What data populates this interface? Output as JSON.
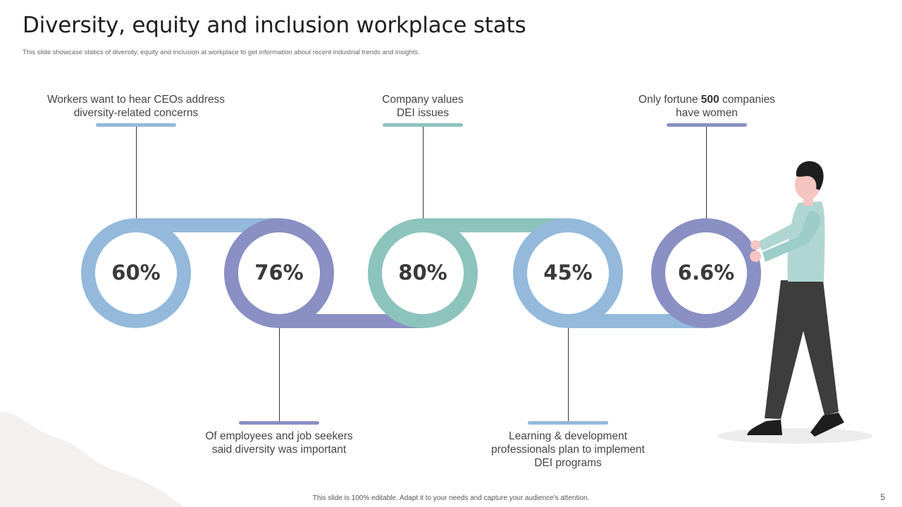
{
  "header": {
    "title": "Diversity, equity and inclusion workplace stats",
    "subtitle": "This slide showcase statics of diversity, equity and inclusion at workplace to get information about recent industrial trends and insights."
  },
  "stats": [
    {
      "value": "60%",
      "label_lines": [
        "Workers want to hear CEOs address",
        "diversity-related concerns"
      ],
      "position": "top",
      "color": "#94b9db"
    },
    {
      "value": "76%",
      "label_lines": [
        "Of employees and job seekers",
        "said diversity was important"
      ],
      "position": "bottom",
      "color": "#8a8fc4"
    },
    {
      "value": "80%",
      "label_lines": [
        "Company values",
        "DEI issues"
      ],
      "position": "top",
      "color": "#8cc4bd"
    },
    {
      "value": "45%",
      "label_lines": [
        "Learning & development",
        "professionals plan to implement",
        "DEI programs"
      ],
      "position": "bottom",
      "color": "#94b9db"
    },
    {
      "value": "6.6%",
      "label_pre": "Only fortune ",
      "label_bold": "500",
      "label_post": " companies",
      "label_line2": "have women",
      "position": "top",
      "color": "#8a8fc4"
    }
  ],
  "footer": {
    "note": "This slide is 100% editable. Adapt it to your needs and capture your audience's attention.",
    "page_number": "5"
  },
  "colors": {
    "blue": "#94b9db",
    "purple": "#8a8fc4",
    "teal": "#8cc4bd",
    "skin": "#f5c6c1",
    "shirt": "#b0d6d3",
    "pants": "#3d3d3d"
  }
}
